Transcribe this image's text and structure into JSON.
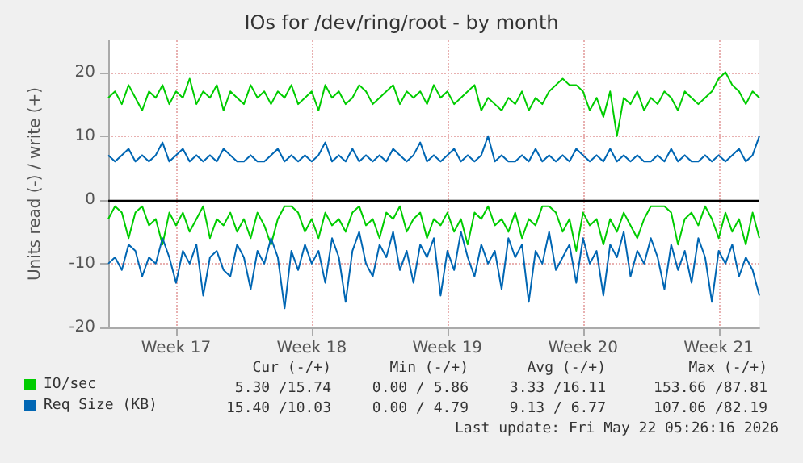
{
  "chart_data": {
    "type": "line",
    "title": "IOs for /dev/ring/root - by month",
    "ylabel": "Units read (-) / write (+)",
    "categories": [
      null,
      null,
      null,
      null,
      null,
      null,
      null,
      null,
      null,
      null,
      "Week 17",
      null,
      null,
      null,
      null,
      null,
      null,
      null,
      null,
      null,
      null,
      null,
      null,
      null,
      null,
      null,
      null,
      null,
      null,
      null,
      "Week 18",
      null,
      null,
      null,
      null,
      null,
      null,
      null,
      null,
      null,
      null,
      null,
      null,
      null,
      null,
      null,
      null,
      null,
      null,
      null,
      "Week 19",
      null,
      null,
      null,
      null,
      null,
      null,
      null,
      null,
      null,
      null,
      null,
      null,
      null,
      null,
      null,
      null,
      null,
      null,
      null,
      "Week 20",
      null,
      null,
      null,
      null,
      null,
      null,
      null,
      null,
      null,
      null,
      null,
      null,
      null,
      null,
      null,
      null,
      null,
      null,
      null,
      "Week 21",
      null,
      null,
      null,
      null,
      null,
      null
    ],
    "series": [
      {
        "name": "IO/sec",
        "color": "#00cc00",
        "values": [
          16,
          17,
          15,
          18,
          16,
          14,
          17,
          16,
          18,
          15,
          17,
          16,
          19,
          15,
          17,
          16,
          18,
          14,
          17,
          16,
          15,
          18,
          16,
          17,
          15,
          17,
          16,
          18,
          15,
          16,
          17,
          14,
          18,
          16,
          17,
          15,
          16,
          18,
          17,
          15,
          16,
          17,
          18,
          15,
          17,
          16,
          17,
          15,
          18,
          16,
          17,
          15,
          16,
          17,
          18,
          14,
          16,
          15,
          14,
          16,
          15,
          17,
          14,
          16,
          15,
          17,
          18,
          19,
          18,
          18,
          17,
          14,
          16,
          13,
          17,
          10,
          16,
          15,
          17,
          14,
          16,
          15,
          17,
          16,
          14,
          17,
          16,
          15,
          16,
          17,
          19,
          20,
          18,
          17,
          15,
          17,
          16
        ]
      },
      {
        "name": "Req Size (KB)",
        "color": "#0066b3",
        "values": [
          7,
          6,
          7,
          8,
          6,
          7,
          6,
          7,
          9,
          6,
          7,
          8,
          6,
          7,
          6,
          7,
          6,
          8,
          7,
          6,
          6,
          7,
          6,
          6,
          7,
          8,
          6,
          7,
          6,
          7,
          6,
          7,
          9,
          6,
          7,
          6,
          8,
          6,
          7,
          6,
          7,
          6,
          8,
          7,
          6,
          7,
          9,
          6,
          7,
          6,
          7,
          8,
          6,
          7,
          6,
          7,
          10,
          6,
          7,
          6,
          6,
          7,
          6,
          8,
          6,
          7,
          6,
          7,
          6,
          8,
          7,
          6,
          7,
          6,
          8,
          6,
          7,
          6,
          7,
          6,
          6,
          7,
          6,
          8,
          6,
          7,
          6,
          6,
          7,
          6,
          7,
          6,
          7,
          8,
          6,
          7,
          10
        ]
      },
      {
        "color": "#00cc00",
        "values": [
          -3,
          -1,
          -2,
          -6,
          -2,
          -1,
          -4,
          -3,
          -7,
          -2,
          -4,
          -2,
          -5,
          -3,
          -1,
          -6,
          -3,
          -4,
          -2,
          -5,
          -3,
          -6,
          -2,
          -4,
          -7,
          -3,
          -1,
          -1,
          -2,
          -5,
          -3,
          -6,
          -2,
          -4,
          -3,
          -5,
          -2,
          -1,
          -4,
          -3,
          -6,
          -2,
          -3,
          -1,
          -5,
          -3,
          -2,
          -6,
          -3,
          -4,
          -2,
          -5,
          -3,
          -7,
          -2,
          -3,
          -1,
          -4,
          -3,
          -5,
          -2,
          -6,
          -3,
          -4,
          -1,
          -1,
          -2,
          -5,
          -3,
          -8,
          -2,
          -4,
          -3,
          -7,
          -3,
          -5,
          -2,
          -4,
          -6,
          -3,
          -1,
          -1,
          -1,
          -2,
          -7,
          -3,
          -2,
          -4,
          -1,
          -3,
          -6,
          -2,
          -5,
          -3,
          -7,
          -2,
          -6
        ]
      },
      {
        "color": "#0066b3",
        "values": [
          -10,
          -9,
          -11,
          -7,
          -8,
          -12,
          -9,
          -10,
          -6,
          -9,
          -13,
          -8,
          -10,
          -7,
          -15,
          -9,
          -8,
          -11,
          -12,
          -7,
          -9,
          -14,
          -8,
          -10,
          -6,
          -9,
          -17,
          -8,
          -11,
          -7,
          -10,
          -8,
          -13,
          -6,
          -9,
          -16,
          -8,
          -5,
          -10,
          -12,
          -7,
          -9,
          -5,
          -11,
          -8,
          -13,
          -7,
          -9,
          -6,
          -15,
          -8,
          -11,
          -5,
          -9,
          -12,
          -7,
          -10,
          -8,
          -14,
          -6,
          -9,
          -7,
          -16,
          -8,
          -10,
          -5,
          -11,
          -9,
          -7,
          -13,
          -6,
          -10,
          -8,
          -15,
          -7,
          -9,
          -5,
          -12,
          -8,
          -10,
          -6,
          -9,
          -14,
          -7,
          -11,
          -8,
          -13,
          -6,
          -9,
          -16,
          -8,
          -10,
          -7,
          -12,
          -9,
          -11,
          -15
        ]
      }
    ],
    "ylim": [
      -20,
      25
    ],
    "yticks": [
      -20,
      -10,
      0,
      10,
      20
    ],
    "ref_lines": [
      {
        "axis": "y",
        "value": 0,
        "color": "#000000"
      }
    ],
    "grid": true,
    "legend": "bottom left",
    "annotations": [
      "Cur (-/+)",
      "Min (-/+)",
      "Avg (-/+)",
      "Max (-/+)",
      "5.30 /15.74",
      "0.00 / 5.86",
      "3.33 /16.11",
      "153.66 /87.81",
      "15.40 /10.03",
      "0.00 / 4.79",
      "9.13 / 6.77",
      "107.06 /82.19",
      "Last update: Fri May 22 05:26:16 2026"
    ]
  }
}
